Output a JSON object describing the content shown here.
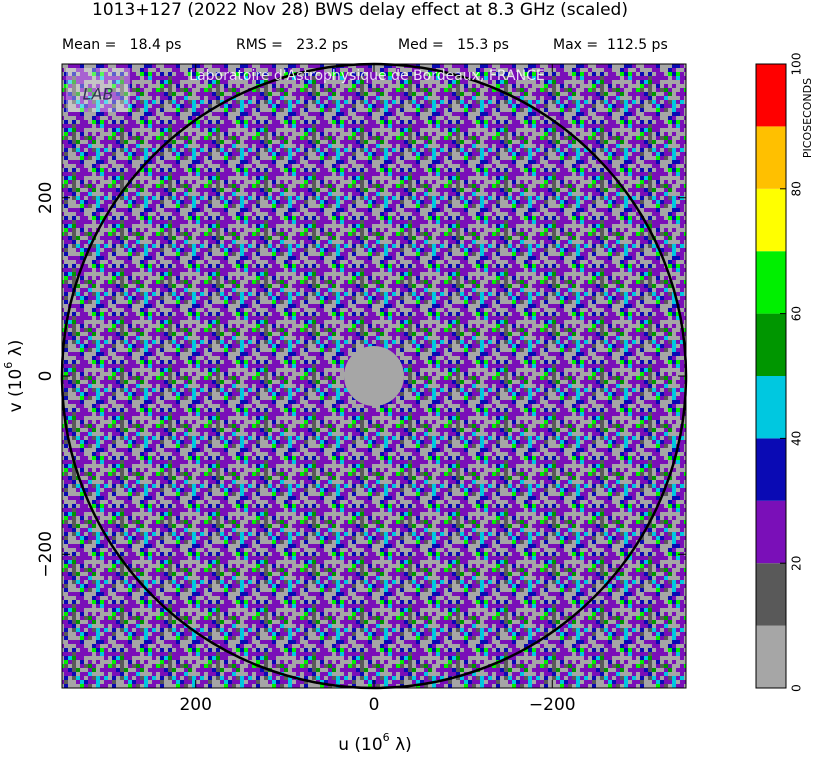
{
  "chart_data": {
    "type": "heatmap",
    "title": "1013+127  (2022 Nov 28)   BWS delay effect at  8.3 GHz (scaled)",
    "stats": [
      "Mean =   18.4 ps",
      "RMS =   23.2 ps",
      "Med =   15.3 ps",
      "Max =  112.5 ps"
    ],
    "watermark": "Laboratoire d'Astrophysique de Bordeaux, FRANCE",
    "logo": "LAB",
    "xlabel": {
      "text": "u  (10",
      "sup": "6",
      "tail": " λ)"
    },
    "ylabel": {
      "text": "v  (10",
      "sup": "6",
      "tail": " λ)"
    },
    "xlim": [
      350,
      -350
    ],
    "xticks": [
      200,
      0,
      {
        "value": -200,
        "label": "−200"
      }
    ],
    "ylim": [
      -350,
      350
    ],
    "yticks": [
      {
        "value": -200,
        "label": "−200"
      },
      0,
      200
    ],
    "circle_radius": 350,
    "colorbar": {
      "label": "PICOSECONDS",
      "lim": [
        0,
        100
      ],
      "ticks": [
        0,
        20,
        40,
        60,
        80,
        100
      ],
      "colors": [
        "#a6a6a6",
        "#595959",
        "#7a0fb8",
        "#0a0ab4",
        "#00c8e0",
        "#009600",
        "#00f000",
        "#ffff00",
        "#ffc000",
        "#ff0000"
      ]
    }
  }
}
